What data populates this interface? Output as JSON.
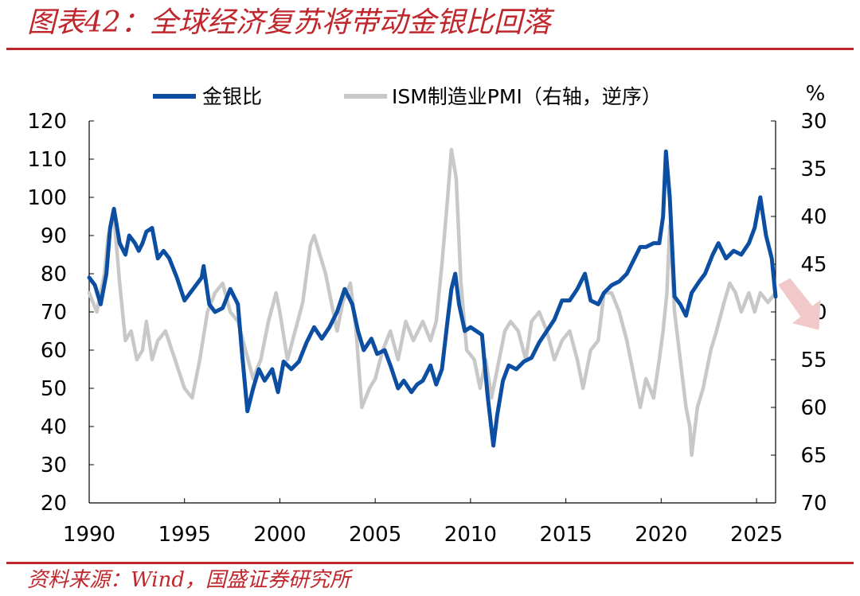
{
  "header": {
    "title": "图表42：全球经济复苏将带动金银比回落"
  },
  "footer": {
    "source": "资料来源：Wind，国盛证券研究所"
  },
  "chart_data": {
    "type": "line",
    "title": "图表42：全球经济复苏将带动金银比回落",
    "x_range": [
      1990,
      2026
    ],
    "x_ticks": [
      1990,
      1995,
      2000,
      2005,
      2010,
      2015,
      2020,
      2025
    ],
    "y_left": {
      "range": [
        20,
        120
      ],
      "ticks": [
        20,
        30,
        40,
        50,
        60,
        70,
        80,
        90,
        100,
        110,
        120
      ]
    },
    "y_right": {
      "range": [
        30,
        70
      ],
      "ticks": [
        30,
        35,
        40,
        45,
        50,
        55,
        60,
        65,
        70
      ],
      "unit": "%",
      "inverted": true
    },
    "legend_position": "top",
    "grid": false,
    "series": [
      {
        "name": "金银比",
        "axis": "left",
        "color": "#0b4ea2",
        "points": [
          [
            1990.0,
            79
          ],
          [
            1990.3,
            77
          ],
          [
            1990.6,
            72
          ],
          [
            1990.9,
            80
          ],
          [
            1991.1,
            92
          ],
          [
            1991.3,
            97
          ],
          [
            1991.6,
            88
          ],
          [
            1991.9,
            85
          ],
          [
            1992.1,
            90
          ],
          [
            1992.4,
            88
          ],
          [
            1992.6,
            86
          ],
          [
            1992.8,
            88
          ],
          [
            1993.0,
            91
          ],
          [
            1993.3,
            92
          ],
          [
            1993.6,
            84
          ],
          [
            1993.9,
            86
          ],
          [
            1994.2,
            84
          ],
          [
            1994.6,
            79
          ],
          [
            1995.0,
            73
          ],
          [
            1995.3,
            75
          ],
          [
            1995.6,
            77
          ],
          [
            1995.9,
            79
          ],
          [
            1996.0,
            82
          ],
          [
            1996.3,
            72
          ],
          [
            1996.6,
            70
          ],
          [
            1997.0,
            71
          ],
          [
            1997.4,
            76
          ],
          [
            1997.8,
            72
          ],
          [
            1998.0,
            60
          ],
          [
            1998.3,
            44
          ],
          [
            1998.6,
            50
          ],
          [
            1998.9,
            55
          ],
          [
            1999.2,
            52
          ],
          [
            1999.6,
            55
          ],
          [
            1999.9,
            49
          ],
          [
            2000.2,
            57
          ],
          [
            2000.6,
            55
          ],
          [
            2001.0,
            57
          ],
          [
            2001.4,
            62
          ],
          [
            2001.8,
            66
          ],
          [
            2002.2,
            63
          ],
          [
            2002.6,
            66
          ],
          [
            2003.0,
            70
          ],
          [
            2003.4,
            76
          ],
          [
            2003.8,
            72
          ],
          [
            2004.1,
            65
          ],
          [
            2004.4,
            60
          ],
          [
            2004.8,
            63
          ],
          [
            2005.1,
            59
          ],
          [
            2005.5,
            60
          ],
          [
            2005.8,
            56
          ],
          [
            2006.2,
            50
          ],
          [
            2006.5,
            52
          ],
          [
            2006.9,
            49
          ],
          [
            2007.2,
            51
          ],
          [
            2007.5,
            52
          ],
          [
            2007.9,
            56
          ],
          [
            2008.2,
            51
          ],
          [
            2008.5,
            55
          ],
          [
            2008.8,
            68
          ],
          [
            2009.0,
            76
          ],
          [
            2009.2,
            80
          ],
          [
            2009.4,
            72
          ],
          [
            2009.7,
            65
          ],
          [
            2010.0,
            66
          ],
          [
            2010.3,
            65
          ],
          [
            2010.6,
            64
          ],
          [
            2010.9,
            48
          ],
          [
            2011.2,
            35
          ],
          [
            2011.4,
            43
          ],
          [
            2011.7,
            52
          ],
          [
            2012.0,
            56
          ],
          [
            2012.4,
            55
          ],
          [
            2012.8,
            57
          ],
          [
            2013.2,
            58
          ],
          [
            2013.6,
            62
          ],
          [
            2014.0,
            65
          ],
          [
            2014.4,
            68
          ],
          [
            2014.8,
            73
          ],
          [
            2015.2,
            73
          ],
          [
            2015.6,
            76
          ],
          [
            2016.0,
            80
          ],
          [
            2016.3,
            73
          ],
          [
            2016.7,
            72
          ],
          [
            2017.0,
            75
          ],
          [
            2017.4,
            77
          ],
          [
            2017.8,
            78
          ],
          [
            2018.2,
            80
          ],
          [
            2018.6,
            84
          ],
          [
            2018.9,
            87
          ],
          [
            2019.2,
            87
          ],
          [
            2019.6,
            88
          ],
          [
            2019.9,
            88
          ],
          [
            2020.1,
            95
          ],
          [
            2020.25,
            112
          ],
          [
            2020.45,
            100
          ],
          [
            2020.7,
            74
          ],
          [
            2021.0,
            72
          ],
          [
            2021.3,
            69
          ],
          [
            2021.6,
            75
          ],
          [
            2022.0,
            78
          ],
          [
            2022.3,
            80
          ],
          [
            2022.7,
            85
          ],
          [
            2023.0,
            88
          ],
          [
            2023.4,
            84
          ],
          [
            2023.8,
            86
          ],
          [
            2024.2,
            85
          ],
          [
            2024.6,
            88
          ],
          [
            2024.9,
            92
          ],
          [
            2025.2,
            100
          ],
          [
            2025.5,
            90
          ],
          [
            2025.8,
            84
          ],
          [
            2026.0,
            74
          ]
        ]
      },
      {
        "name": "ISM制造业PMI（右轴，逆序）",
        "axis": "right",
        "color": "#c8c8c8",
        "points": [
          [
            1990.0,
            48
          ],
          [
            1990.4,
            50
          ],
          [
            1990.8,
            46
          ],
          [
            1991.0,
            42
          ],
          [
            1991.3,
            40
          ],
          [
            1991.6,
            47
          ],
          [
            1991.9,
            53
          ],
          [
            1992.2,
            52
          ],
          [
            1992.5,
            55
          ],
          [
            1992.8,
            54
          ],
          [
            1993.0,
            51
          ],
          [
            1993.3,
            55
          ],
          [
            1993.6,
            53
          ],
          [
            1994.0,
            52
          ],
          [
            1994.5,
            55
          ],
          [
            1995.0,
            58
          ],
          [
            1995.4,
            59
          ],
          [
            1995.8,
            55
          ],
          [
            1996.2,
            50
          ],
          [
            1996.6,
            48
          ],
          [
            1997.0,
            47
          ],
          [
            1997.4,
            50
          ],
          [
            1997.8,
            51
          ],
          [
            1998.2,
            54
          ],
          [
            1998.6,
            57
          ],
          [
            1999.0,
            55
          ],
          [
            1999.4,
            51
          ],
          [
            1999.8,
            48
          ],
          [
            2000.0,
            50
          ],
          [
            2000.4,
            55
          ],
          [
            2000.8,
            52
          ],
          [
            2001.2,
            49
          ],
          [
            2001.6,
            43
          ],
          [
            2001.8,
            42
          ],
          [
            2002.1,
            44
          ],
          [
            2002.4,
            46
          ],
          [
            2002.8,
            50
          ],
          [
            2003.0,
            52
          ],
          [
            2003.3,
            49
          ],
          [
            2003.7,
            47
          ],
          [
            2004.0,
            52
          ],
          [
            2004.3,
            60
          ],
          [
            2004.7,
            58
          ],
          [
            2005.0,
            57
          ],
          [
            2005.4,
            54
          ],
          [
            2005.8,
            52
          ],
          [
            2006.2,
            55
          ],
          [
            2006.6,
            51
          ],
          [
            2007.0,
            53
          ],
          [
            2007.5,
            51
          ],
          [
            2007.9,
            53
          ],
          [
            2008.2,
            51
          ],
          [
            2008.5,
            45
          ],
          [
            2008.8,
            38
          ],
          [
            2009.0,
            33
          ],
          [
            2009.25,
            36
          ],
          [
            2009.5,
            47
          ],
          [
            2009.8,
            54
          ],
          [
            2010.2,
            55
          ],
          [
            2010.5,
            58
          ],
          [
            2010.8,
            55
          ],
          [
            2011.1,
            59
          ],
          [
            2011.4,
            56
          ],
          [
            2011.8,
            52
          ],
          [
            2012.1,
            51
          ],
          [
            2012.5,
            52
          ],
          [
            2012.9,
            55
          ],
          [
            2013.2,
            51
          ],
          [
            2013.6,
            50
          ],
          [
            2014.0,
            52
          ],
          [
            2014.4,
            55
          ],
          [
            2014.8,
            53
          ],
          [
            2015.2,
            52
          ],
          [
            2015.6,
            55
          ],
          [
            2015.9,
            58
          ],
          [
            2016.3,
            54
          ],
          [
            2016.7,
            53
          ],
          [
            2017.0,
            48
          ],
          [
            2017.4,
            48
          ],
          [
            2017.8,
            50
          ],
          [
            2018.2,
            53
          ],
          [
            2018.6,
            57
          ],
          [
            2018.9,
            60
          ],
          [
            2019.2,
            57
          ],
          [
            2019.6,
            59
          ],
          [
            2019.9,
            55
          ],
          [
            2020.1,
            52
          ],
          [
            2020.3,
            48
          ],
          [
            2020.45,
            41
          ],
          [
            2020.7,
            50
          ],
          [
            2021.0,
            55
          ],
          [
            2021.3,
            60
          ],
          [
            2021.5,
            62
          ],
          [
            2021.6,
            65
          ],
          [
            2021.9,
            60
          ],
          [
            2022.2,
            58
          ],
          [
            2022.6,
            54
          ],
          [
            2022.9,
            52
          ],
          [
            2023.3,
            49
          ],
          [
            2023.6,
            47
          ],
          [
            2023.9,
            48
          ],
          [
            2024.2,
            50
          ],
          [
            2024.6,
            48
          ],
          [
            2024.9,
            50
          ],
          [
            2025.2,
            48
          ],
          [
            2025.6,
            49
          ],
          [
            2026.0,
            48
          ]
        ]
      }
    ]
  }
}
